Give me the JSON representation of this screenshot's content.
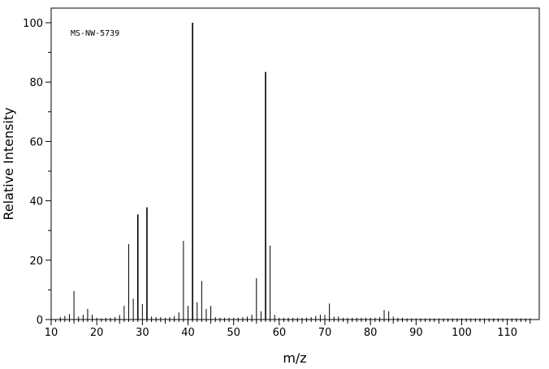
{
  "chart_data": {
    "type": "bar",
    "annotation": "MS-NW-5739",
    "xlabel": "m/z",
    "ylabel": "Relative Intensity",
    "xlim": [
      10,
      117
    ],
    "ylim": [
      0,
      100
    ],
    "xticks": [
      10,
      20,
      30,
      40,
      50,
      60,
      70,
      80,
      90,
      100,
      110
    ],
    "yticks": [
      0,
      20,
      40,
      60,
      80,
      100
    ],
    "grid": false,
    "colors": {
      "line": "#000000",
      "background": "#ffffff"
    },
    "series": [
      {
        "x": [
          12,
          13,
          14,
          15,
          16,
          17,
          18,
          19,
          20,
          21,
          22,
          23,
          24,
          25,
          26,
          27,
          28,
          29,
          30,
          31,
          32,
          33,
          34,
          35,
          36,
          37,
          38,
          39,
          40,
          41,
          42,
          43,
          44,
          45,
          46,
          47,
          48,
          49,
          50,
          51,
          52,
          53,
          54,
          55,
          56,
          57,
          58,
          59,
          60,
          61,
          62,
          63,
          64,
          65,
          66,
          67,
          68,
          69,
          70,
          71,
          72,
          73,
          74,
          75,
          76,
          77,
          78,
          79,
          80,
          81,
          82,
          83,
          84,
          85,
          86,
          87,
          88,
          89,
          90,
          91,
          92,
          93,
          94,
          95,
          96,
          97,
          98,
          99,
          100,
          101,
          102,
          103,
          104,
          105,
          106,
          107,
          108,
          109,
          110,
          111,
          112,
          113,
          114,
          115
        ],
        "values": [
          0.8,
          1.2,
          1.8,
          9.6,
          1.0,
          1.6,
          3.6,
          1.6,
          0.6,
          0.4,
          0.6,
          0.6,
          0.8,
          1.5,
          4.6,
          25.4,
          7.0,
          35.4,
          5.2,
          37.8,
          1.0,
          0.8,
          0.8,
          0.6,
          0.8,
          1.2,
          2.4,
          26.5,
          4.6,
          100,
          5.8,
          13.0,
          3.6,
          4.6,
          0.8,
          0.6,
          0.6,
          0.6,
          0.6,
          0.6,
          0.8,
          1.0,
          1.6,
          13.9,
          2.8,
          83.4,
          24.9,
          1.6,
          0.6,
          0.6,
          0.6,
          0.6,
          0.6,
          0.6,
          0.6,
          0.8,
          1.2,
          1.6,
          1.6,
          5.4,
          1.0,
          1.0,
          0.6,
          0.6,
          0.6,
          0.6,
          0.6,
          0.6,
          0.6,
          0.6,
          0.8,
          3.2,
          2.8,
          1.0,
          0.6,
          0.6,
          0.4,
          0.4,
          0.4,
          0.4,
          0.4,
          0.4,
          0.4,
          0.4,
          0.4,
          0.4,
          0.4,
          0.4,
          0.4,
          0.4,
          0.4,
          0.4,
          0.4,
          0.4,
          0.4,
          0.4,
          0.4,
          0.4,
          0.4,
          0.4,
          0.4,
          0.4,
          0.4,
          0.4
        ]
      }
    ]
  }
}
